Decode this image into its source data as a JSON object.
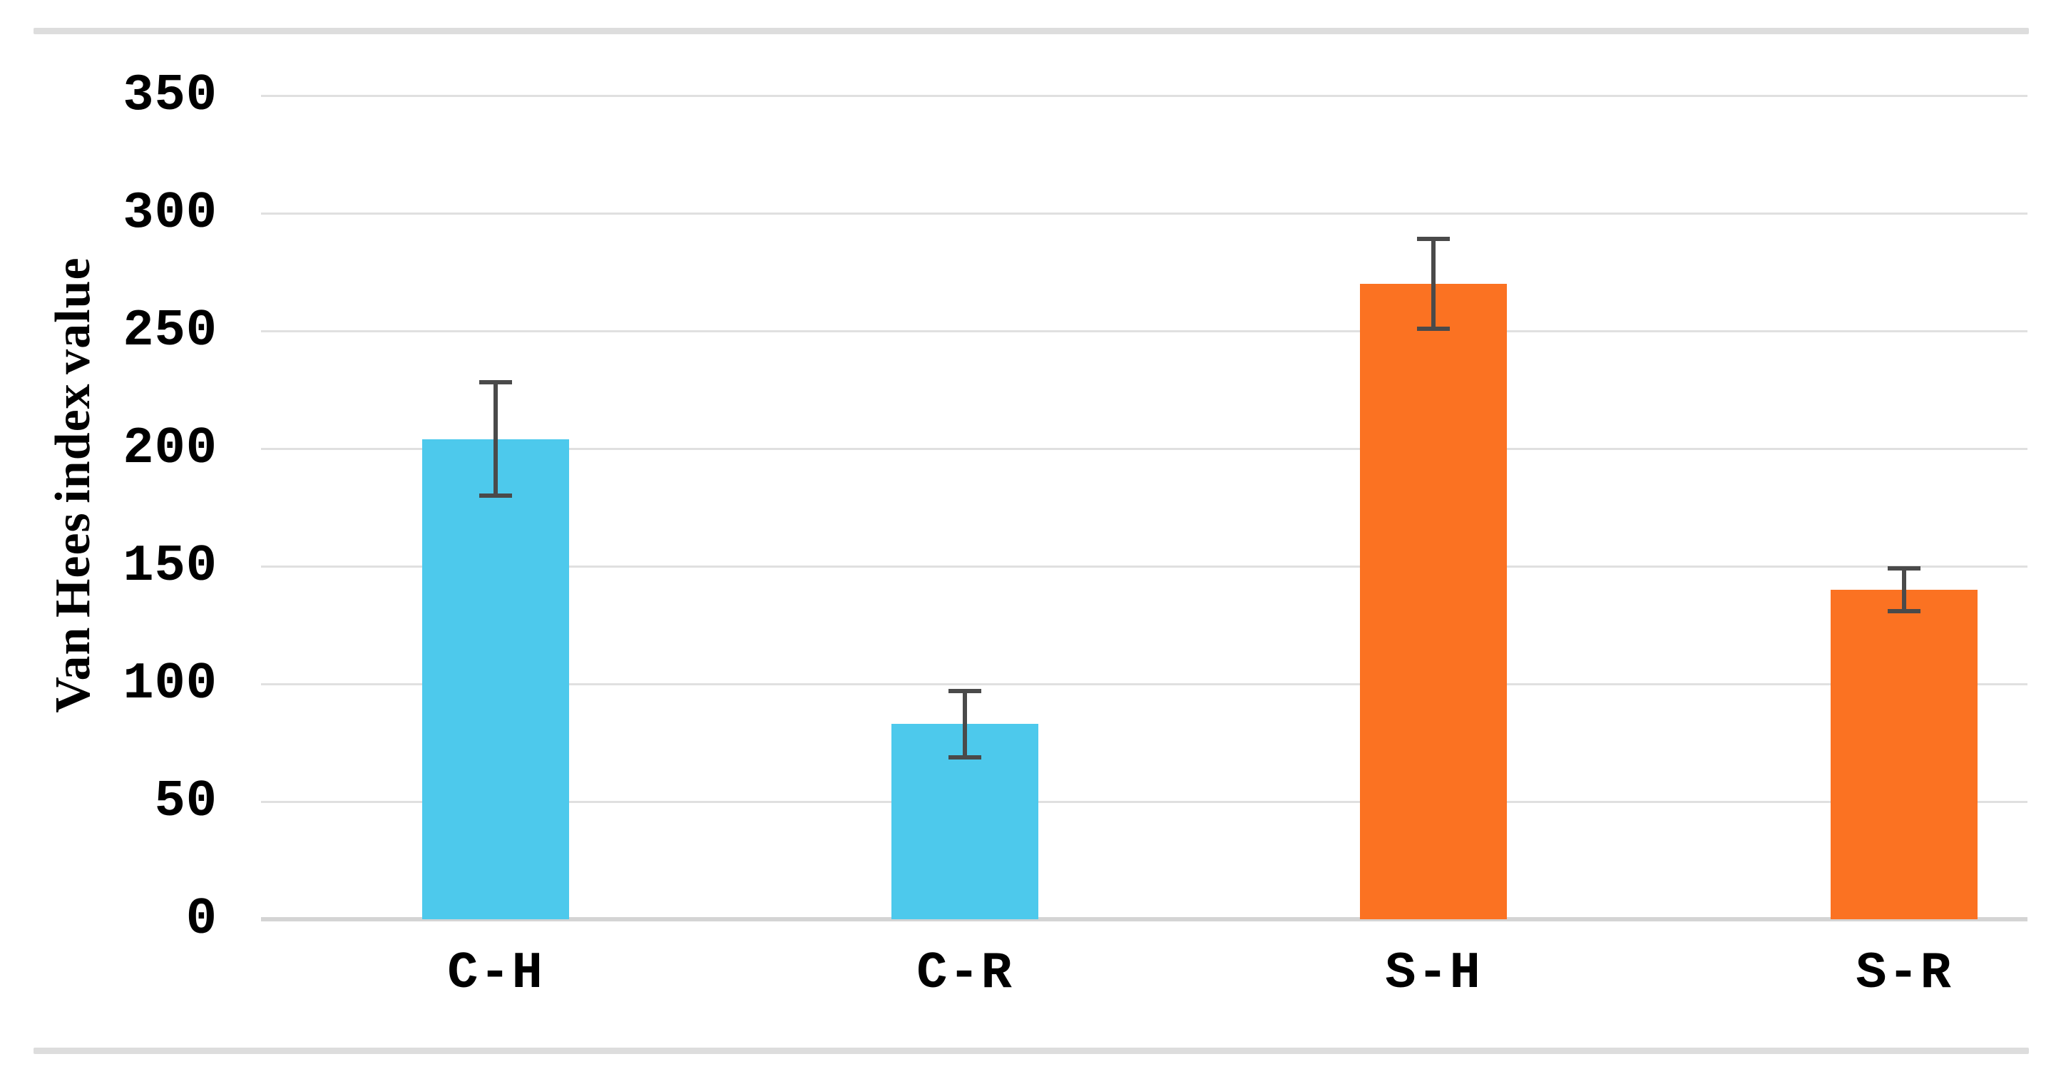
{
  "chart_data": {
    "type": "bar",
    "title": "",
    "ylabel": "Van Hees index value",
    "xlabel": "",
    "ylim": [
      0,
      350
    ],
    "ytick_step": 50,
    "ytick_labels": [
      "0",
      "50",
      "100",
      "150",
      "200",
      "250",
      "300",
      "350"
    ],
    "grid": true,
    "legend": "none",
    "categories": [
      "C-H",
      "C-R",
      "S-H",
      "S-R"
    ],
    "values": [
      204,
      83,
      270,
      140
    ],
    "error_bars": [
      25,
      15,
      20,
      10
    ],
    "bar_colors": [
      "#4dc9ec",
      "#4dc9ec",
      "#fb7222",
      "#fb7222"
    ],
    "colors": {
      "cyan_series": "#4dc9ec",
      "orange_series": "#fb7222",
      "error_bar": "#4a4a4a",
      "gridline": "#e0e0e0",
      "axis_line": "#d4d4d4",
      "border_band": "#dddddd",
      "text": "#000000",
      "background": "#ffffff"
    }
  }
}
